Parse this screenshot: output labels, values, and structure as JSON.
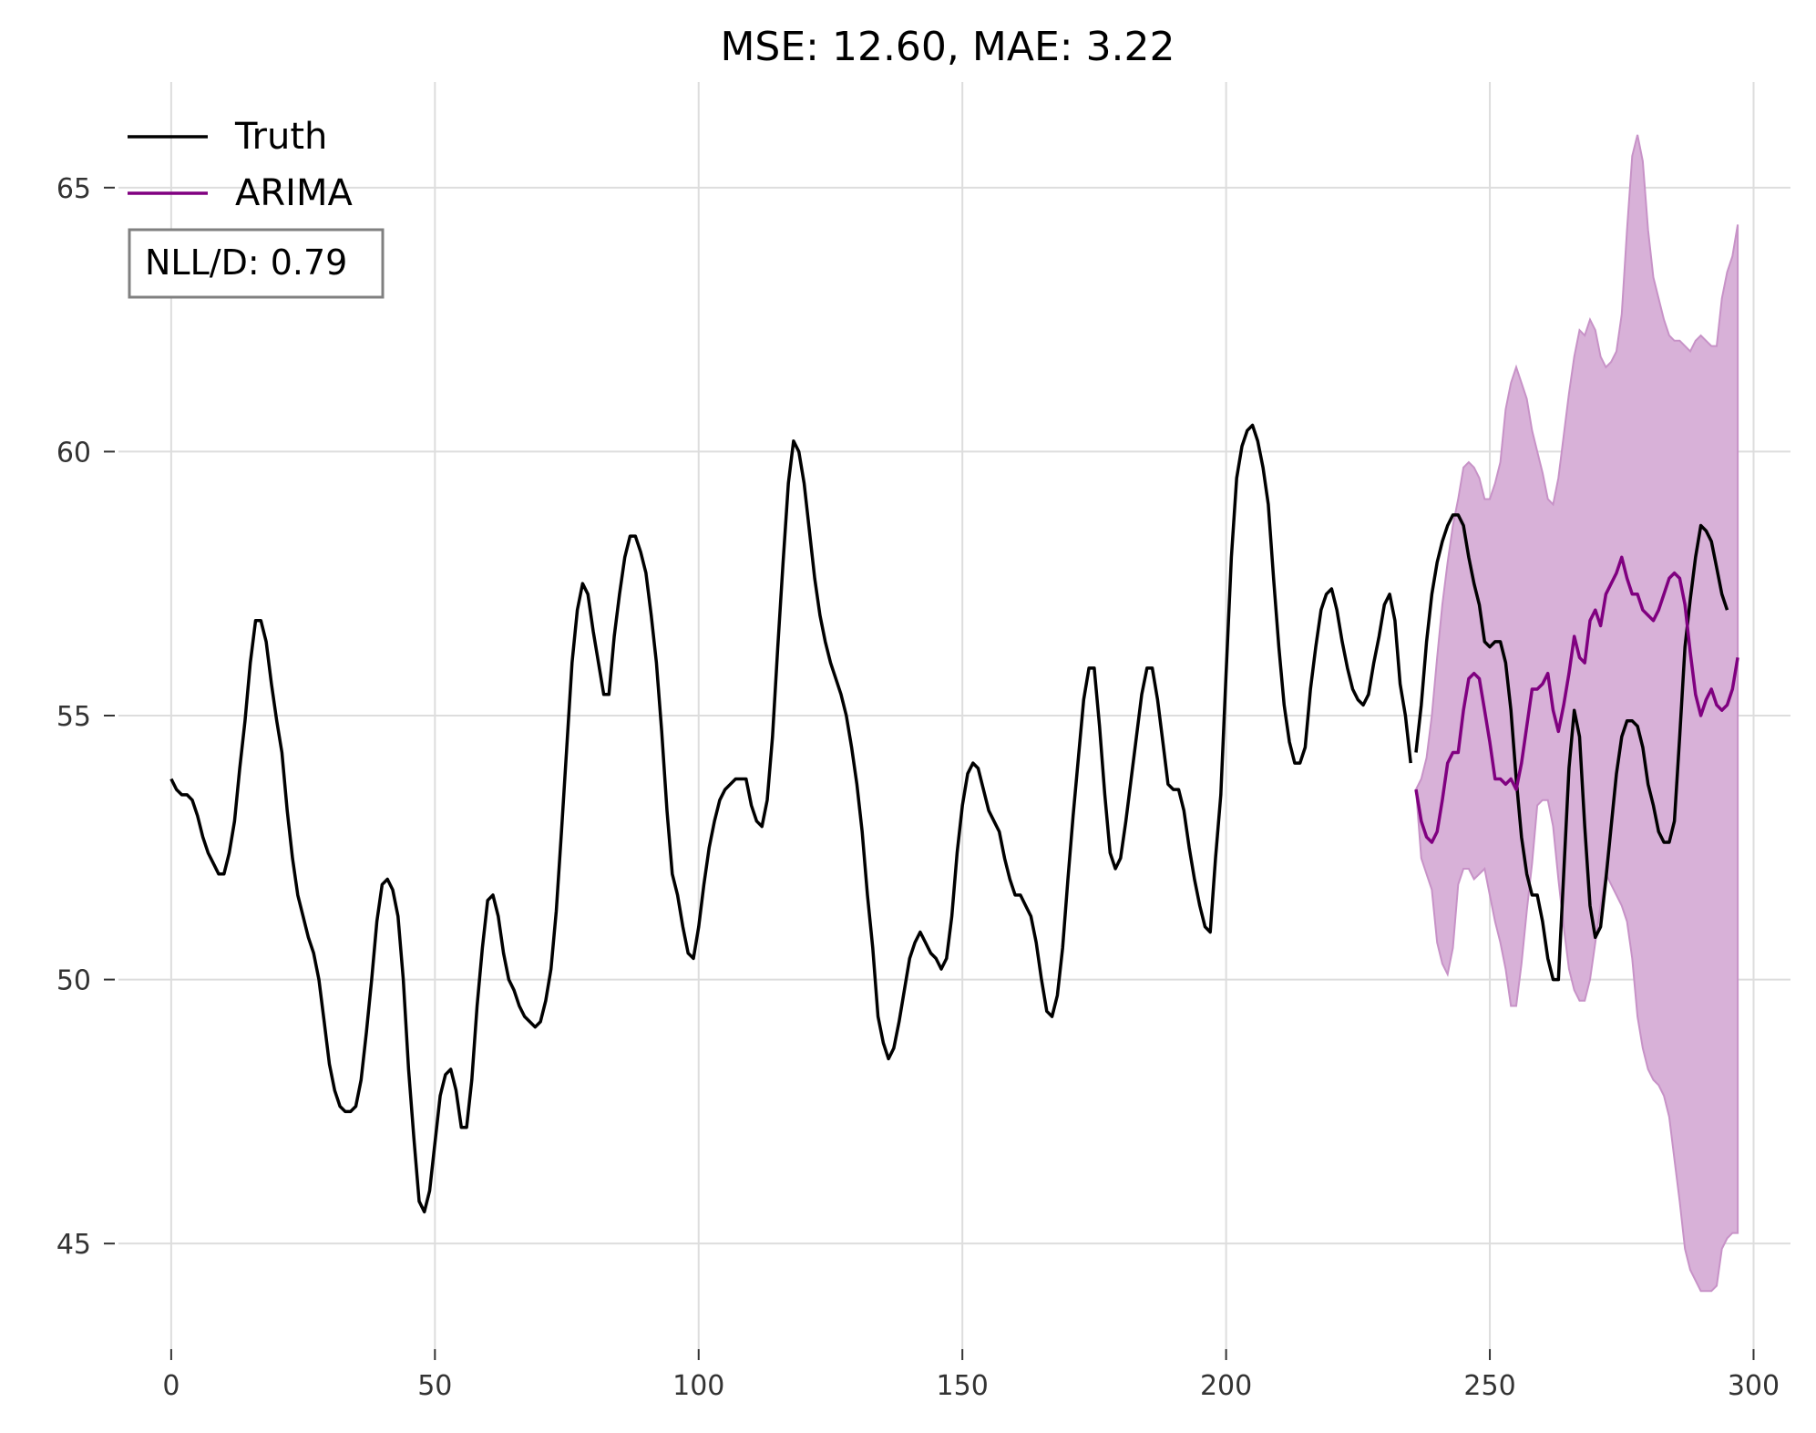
{
  "chart_data": {
    "type": "line",
    "title": "MSE: 12.60, MAE: 3.22",
    "xlabel": "",
    "ylabel": "",
    "xlim": [
      -10,
      307
    ],
    "ylim": [
      43,
      67
    ],
    "x_ticks": [
      0,
      50,
      100,
      150,
      200,
      250,
      300
    ],
    "y_ticks": [
      45,
      50,
      55,
      60,
      65
    ],
    "x_tick_labels": [
      "0",
      "50",
      "100",
      "150",
      "200",
      "250",
      "300"
    ],
    "y_tick_labels": [
      "45",
      "50",
      "55",
      "60",
      "65"
    ],
    "grid": true,
    "legend_position": "top-left",
    "annotation": "NLL/D: 0.79",
    "series": [
      {
        "name": "Truth",
        "color": "#000000",
        "segments": [
          {
            "x_start": 0,
            "values": [
              53.8,
              53.6,
              53.5,
              53.5,
              53.4,
              53.1,
              52.7,
              52.4,
              52.2,
              52.0,
              52.0,
              52.4,
              53.0,
              54.0,
              54.9,
              56.0,
              56.8,
              56.8,
              56.4,
              55.6,
              54.9,
              54.3,
              53.2,
              52.3,
              51.6,
              51.2,
              50.8,
              50.5,
              50.0,
              49.2,
              48.4,
              47.9,
              47.6,
              47.5,
              47.5,
              47.6,
              48.1,
              49.0,
              50.0,
              51.1,
              51.8,
              51.9,
              51.7,
              51.2,
              50.0,
              48.3,
              47.0,
              45.8,
              45.6,
              46.0,
              46.9,
              47.8,
              48.2,
              48.3,
              47.9,
              47.2,
              47.2,
              48.1,
              49.5,
              50.6,
              51.5,
              51.6,
              51.2,
              50.5,
              50.0,
              49.8,
              49.5,
              49.3,
              49.2,
              49.1,
              49.2,
              49.6,
              50.2,
              51.3,
              52.8,
              54.4,
              56.0,
              57.0,
              57.5,
              57.3,
              56.6,
              56.0,
              55.4,
              55.4,
              56.5,
              57.3,
              58.0,
              58.4,
              58.4,
              58.1,
              57.7,
              56.9,
              56.0,
              54.7,
              53.2,
              52.0,
              51.6,
              51.0,
              50.5,
              50.4,
              51.0,
              51.8,
              52.5,
              53.0,
              53.4,
              53.6,
              53.7,
              53.8,
              53.8,
              53.8,
              53.3,
              53.0,
              52.9,
              53.4,
              54.6,
              56.3,
              57.9,
              59.4,
              60.2,
              60.0,
              59.4,
              58.5,
              57.6,
              56.9,
              56.4,
              56.0,
              55.7,
              55.4,
              55.0,
              54.4,
              53.7,
              52.8,
              51.6,
              50.6,
              49.3,
              48.8,
              48.5,
              48.7,
              49.2,
              49.8,
              50.4,
              50.7,
              50.9,
              50.7,
              50.5,
              50.4,
              50.2,
              50.4,
              51.2,
              52.4,
              53.3,
              53.9,
              54.1,
              54.0,
              53.6,
              53.2,
              53.0,
              52.8,
              52.3,
              51.9,
              51.6,
              51.6,
              51.4,
              51.2,
              50.7,
              50.0,
              49.4,
              49.3,
              49.7,
              50.6,
              51.9,
              53.1,
              54.2,
              55.3,
              55.9,
              55.9,
              54.8,
              53.5,
              52.4,
              52.1,
              52.3,
              53.0,
              53.8,
              54.6,
              55.4,
              55.9,
              55.9,
              55.3,
              54.5,
              53.7,
              53.6,
              53.6,
              53.2,
              52.5,
              51.9,
              51.4,
              51.0,
              50.9,
              52.3,
              53.5,
              55.8,
              58.0,
              59.5,
              60.1,
              60.4,
              60.5,
              60.2,
              59.7,
              59.0,
              57.6,
              56.3,
              55.2,
              54.5,
              54.1,
              54.1,
              54.4,
              55.5,
              56.3,
              57.0,
              57.3,
              57.4,
              57.0,
              56.4,
              55.9,
              55.5,
              55.3,
              55.2,
              55.4,
              56.0,
              56.5,
              57.1,
              57.3,
              56.8,
              55.6,
              55.0,
              54.1
            ]
          },
          {
            "x_start": 236,
            "values": [
              54.3,
              55.2,
              56.4,
              57.3,
              57.9,
              58.3,
              58.6,
              58.8,
              58.8,
              58.6,
              58.0,
              57.5,
              57.1,
              56.4,
              56.3,
              56.4,
              56.4,
              56.0,
              55.1,
              53.8,
              52.7,
              52.0,
              51.6,
              51.6,
              51.1,
              50.4,
              50.0,
              50.0,
              52.0,
              54.0,
              55.1,
              54.6,
              52.9,
              51.4,
              50.8,
              51.0,
              51.9,
              52.9,
              53.9,
              54.6,
              54.9,
              54.9,
              54.8,
              54.4,
              53.7,
              53.3,
              52.8,
              52.6,
              52.6,
              53.0,
              54.6,
              56.3,
              57.2,
              58.0,
              58.6,
              58.5,
              58.3,
              57.8,
              57.3,
              57.0
            ]
          }
        ]
      },
      {
        "name": "ARIMA",
        "color": "#800080",
        "segments": [
          {
            "x_start": 236,
            "values": [
              53.6,
              53.0,
              52.7,
              52.6,
              52.8,
              53.4,
              54.1,
              54.3,
              54.3,
              55.1,
              55.7,
              55.8,
              55.7,
              55.1,
              54.5,
              53.8,
              53.8,
              53.7,
              53.8,
              53.6,
              54.1,
              54.8,
              55.5,
              55.5,
              55.6,
              55.8,
              55.1,
              54.7,
              55.2,
              55.8,
              56.5,
              56.1,
              56.0,
              56.8,
              57.0,
              56.7,
              57.3,
              57.5,
              57.7,
              58.0,
              57.6,
              57.3,
              57.3,
              57.0,
              56.9,
              56.8,
              57.0,
              57.3,
              57.6,
              57.7,
              57.6,
              57.1,
              56.2,
              55.4,
              55.0,
              55.3,
              55.5,
              55.2,
              55.1,
              55.2,
              55.5,
              56.1
            ]
          }
        ],
        "band": {
          "color": "#d8b1d8",
          "edge_color": "#c792c7",
          "upper": [
            53.6,
            53.8,
            54.2,
            55.0,
            56.1,
            57.1,
            57.9,
            58.6,
            59.1,
            59.7,
            59.8,
            59.7,
            59.5,
            59.1,
            59.1,
            59.4,
            59.8,
            60.8,
            61.3,
            61.6,
            61.3,
            61.0,
            60.4,
            60.0,
            59.6,
            59.1,
            59.0,
            59.5,
            60.3,
            61.1,
            61.8,
            62.3,
            62.2,
            62.5,
            62.3,
            61.8,
            61.6,
            61.7,
            61.9,
            62.6,
            64.2,
            65.6,
            66.0,
            65.5,
            64.2,
            63.3,
            62.9,
            62.5,
            62.2,
            62.1,
            62.1,
            62.0,
            61.9,
            62.1,
            62.2,
            62.1,
            62.0,
            62.0,
            62.9,
            63.4,
            63.7,
            64.3
          ],
          "lower": [
            53.6,
            52.3,
            52.0,
            51.7,
            50.7,
            50.3,
            50.1,
            50.6,
            51.8,
            52.1,
            52.1,
            51.9,
            52.0,
            52.1,
            51.6,
            51.1,
            50.7,
            50.2,
            49.5,
            49.5,
            50.3,
            51.3,
            52.2,
            53.3,
            53.4,
            53.4,
            52.9,
            51.9,
            51.0,
            50.2,
            49.8,
            49.6,
            49.6,
            50.0,
            50.7,
            51.4,
            52.0,
            51.8,
            51.6,
            51.4,
            51.1,
            50.4,
            49.3,
            48.7,
            48.3,
            48.1,
            48.0,
            47.8,
            47.4,
            46.6,
            45.8,
            44.9,
            44.5,
            44.3,
            44.1,
            44.1,
            44.1,
            44.2,
            44.9,
            45.1,
            45.2,
            45.2
          ]
        }
      }
    ]
  }
}
